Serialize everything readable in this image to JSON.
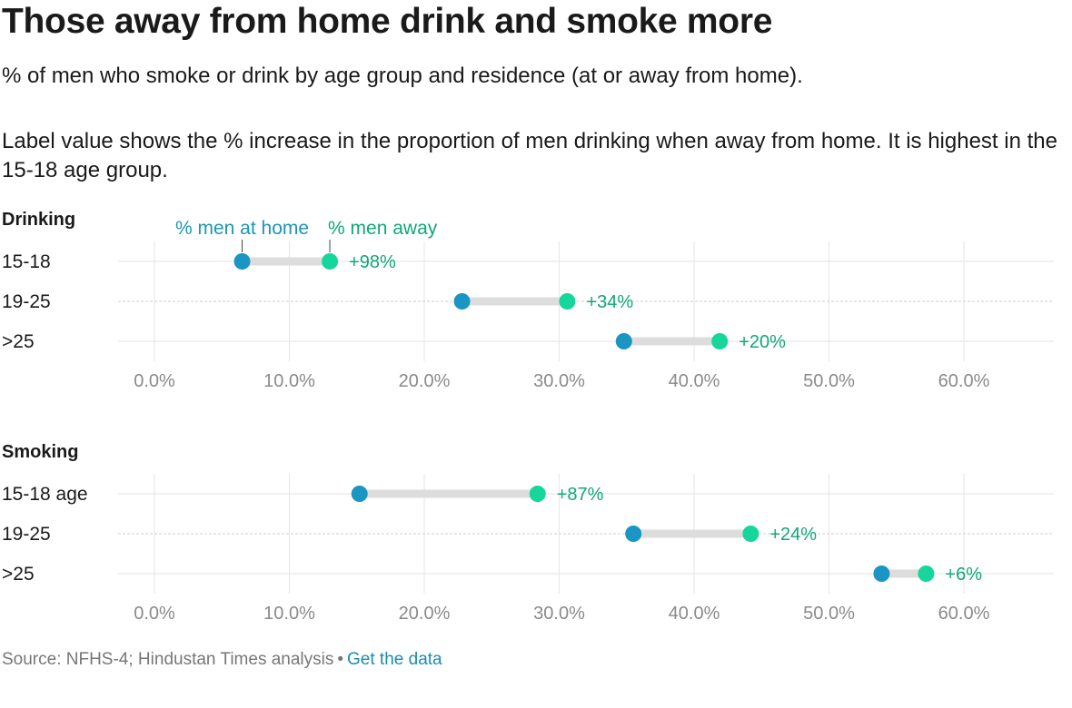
{
  "header": {
    "title": "Those away from home drink and smoke more",
    "subtitle": "% of men who smoke or drink by age group and residence (at or away from home).",
    "note": "Label value shows the % increase in the proportion of men drinking when away from home. It is highest in the 15-18 age group."
  },
  "colors": {
    "home": "#1b95c3",
    "away": "#16d69b",
    "away_text": "#10a876",
    "home_text": "#1a95b8",
    "connector": "#dddddd",
    "grid": "#e6e6e6",
    "axis_text": "#8a8a8a"
  },
  "chart_data": [
    {
      "type": "dumbbell",
      "title": "Drinking",
      "legend": {
        "home_label": "% men at home",
        "away_label": "% men away",
        "placement": "top-left"
      },
      "categories": [
        "15-18",
        "19-25",
        ">25"
      ],
      "series": [
        {
          "name": "% men at home",
          "values": [
            6.5,
            22.8,
            34.8
          ]
        },
        {
          "name": "% men away",
          "values": [
            13.0,
            30.6,
            41.9
          ]
        }
      ],
      "labels": [
        "+98%",
        "+34%",
        "+20%"
      ],
      "xlim": [
        0,
        65
      ],
      "ticks": [
        0,
        10,
        20,
        30,
        40,
        50,
        60
      ],
      "tick_labels": [
        "0.0%",
        "10.0%",
        "20.0%",
        "30.0%",
        "40.0%",
        "50.0%",
        "60.0%"
      ],
      "grid": true
    },
    {
      "type": "dumbbell",
      "title": "Smoking",
      "legend": {
        "home_label": "",
        "away_label": ""
      },
      "categories": [
        "15-18 age",
        "19-25",
        ">25"
      ],
      "series": [
        {
          "name": "% men at home",
          "values": [
            15.2,
            35.5,
            53.9
          ]
        },
        {
          "name": "% men away",
          "values": [
            28.4,
            44.2,
            57.2
          ]
        }
      ],
      "labels": [
        "+87%",
        "+24%",
        "+6%"
      ],
      "xlim": [
        0,
        65
      ],
      "ticks": [
        0,
        10,
        20,
        30,
        40,
        50,
        60
      ],
      "tick_labels": [
        "0.0%",
        "10.0%",
        "20.0%",
        "30.0%",
        "40.0%",
        "50.0%",
        "60.0%"
      ],
      "grid": true
    }
  ],
  "footer": {
    "source": "Source: NFHS-4; Hindustan Times analysis",
    "separator": "•",
    "link_label": "Get the data"
  }
}
